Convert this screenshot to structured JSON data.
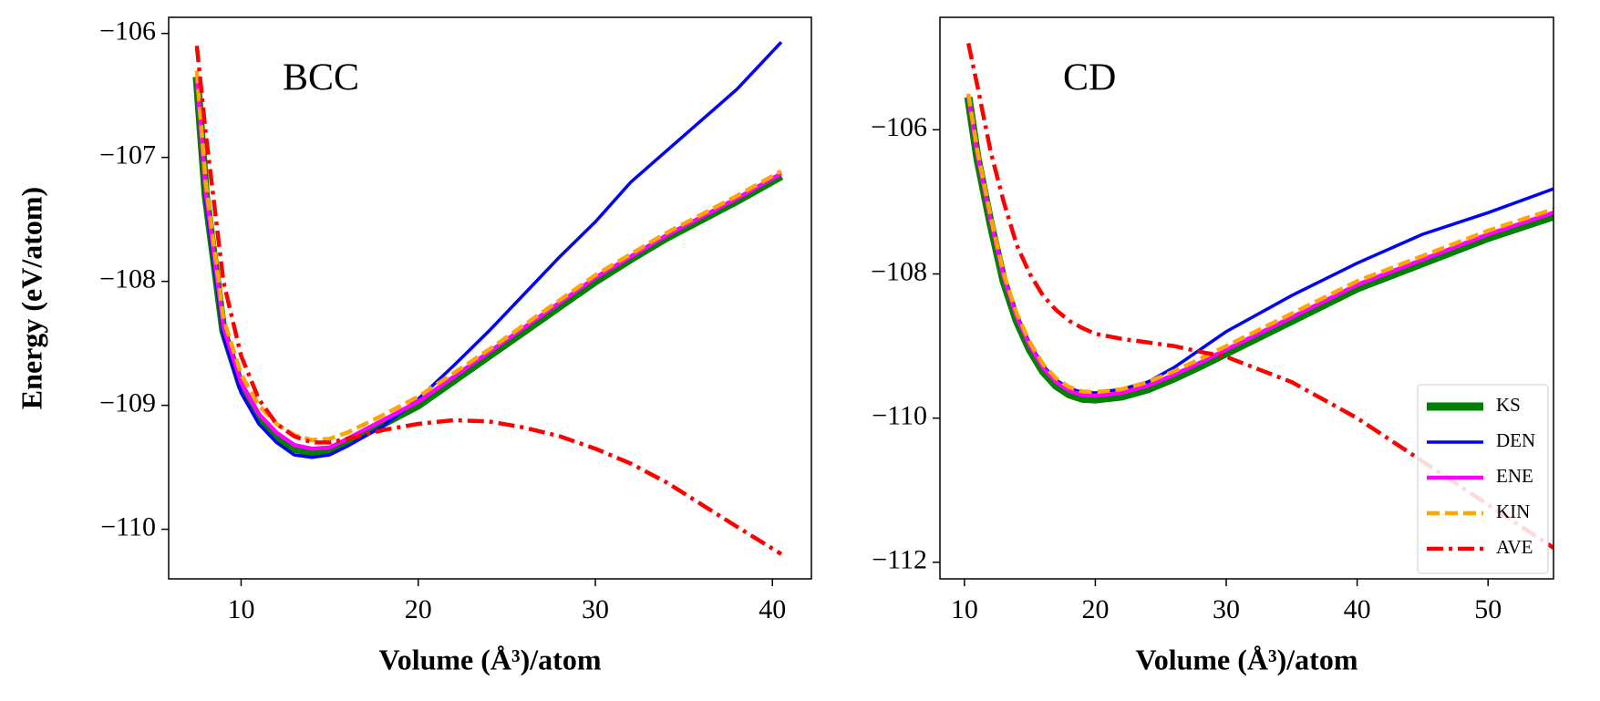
{
  "chart_data": [
    {
      "type": "line",
      "annotation": "BCC",
      "xlabel": "Volume (Å³)/atom",
      "ylabel": "Energy (eV/atom)",
      "xlim": [
        5.91,
        42.2
      ],
      "ylim": [
        -110.4,
        -105.87
      ],
      "xticks": [
        10,
        20,
        30,
        40
      ],
      "yticks": [
        {
          "value": -110,
          "label": "−110"
        },
        {
          "value": -109,
          "label": "−109"
        },
        {
          "value": -108,
          "label": "−108"
        },
        {
          "value": -107,
          "label": "−107"
        },
        {
          "value": -106,
          "label": "−106"
        }
      ],
      "x": [
        7.5,
        8,
        9,
        10,
        11,
        12,
        13,
        14,
        15,
        16,
        18,
        20,
        22,
        24,
        26,
        28,
        30,
        32,
        34,
        36,
        38,
        40.5
      ],
      "series": [
        {
          "color": "#008000",
          "linewidth": 9,
          "style": "solid",
          "values": [
            -106.35,
            -107.3,
            -108.4,
            -108.85,
            -109.1,
            -109.25,
            -109.35,
            -109.38,
            -109.37,
            -109.3,
            -109.15,
            -109.0,
            -108.8,
            -108.6,
            -108.4,
            -108.2,
            -108.0,
            -107.82,
            -107.65,
            -107.5,
            -107.35,
            -107.15
          ]
        },
        {
          "color": "#0000ff",
          "linewidth": 3.5,
          "style": "solid",
          "values": [
            -106.4,
            -107.35,
            -108.45,
            -108.9,
            -109.15,
            -109.3,
            -109.4,
            -109.42,
            -109.4,
            -109.33,
            -109.17,
            -108.95,
            -108.68,
            -108.4,
            -108.1,
            -107.8,
            -107.52,
            -107.2,
            -106.95,
            -106.7,
            -106.45,
            -106.07
          ]
        },
        {
          "color": "#ff00ff",
          "linewidth": 4.5,
          "style": "solid",
          "values": [
            -106.35,
            -107.28,
            -108.37,
            -108.82,
            -109.07,
            -109.22,
            -109.32,
            -109.35,
            -109.34,
            -109.27,
            -109.12,
            -108.97,
            -108.77,
            -108.57,
            -108.37,
            -108.17,
            -107.97,
            -107.8,
            -107.63,
            -107.48,
            -107.33,
            -107.13
          ]
        },
        {
          "color": "#ffa500",
          "linewidth": 4.5,
          "style": "dashed",
          "values": [
            -106.3,
            -107.2,
            -108.3,
            -108.75,
            -109.0,
            -109.15,
            -109.24,
            -109.28,
            -109.27,
            -109.22,
            -109.08,
            -108.93,
            -108.74,
            -108.55,
            -108.35,
            -108.15,
            -107.95,
            -107.78,
            -107.61,
            -107.46,
            -107.31,
            -107.11
          ]
        },
        {
          "color": "#ff0000",
          "linewidth": 4.5,
          "style": "dashdot",
          "values": [
            -106.1,
            -106.8,
            -108.0,
            -108.6,
            -108.95,
            -109.15,
            -109.25,
            -109.3,
            -109.3,
            -109.27,
            -109.2,
            -109.15,
            -109.12,
            -109.13,
            -109.18,
            -109.25,
            -109.35,
            -109.47,
            -109.62,
            -109.8,
            -109.98,
            -110.2
          ]
        }
      ]
    },
    {
      "type": "line",
      "annotation": "CD",
      "xlabel": "Volume (Å³)/atom",
      "legend": "lower right",
      "xlim": [
        8.13,
        55.0
      ],
      "ylim": [
        -112.23,
        -104.44
      ],
      "xticks": [
        10,
        20,
        30,
        40,
        50
      ],
      "yticks": [
        {
          "value": -112,
          "label": "−112"
        },
        {
          "value": -110,
          "label": "−110"
        },
        {
          "value": -108,
          "label": "−108"
        },
        {
          "value": -106,
          "label": "−106"
        }
      ],
      "x": [
        10.3,
        11,
        12,
        13,
        14,
        15,
        16,
        17,
        18,
        19,
        20,
        22,
        24,
        26,
        28,
        30,
        35,
        40,
        45,
        50,
        55
      ],
      "series": [
        {
          "name": "KS",
          "color": "#008000",
          "linewidth": 9,
          "style": "solid",
          "values": [
            -105.55,
            -106.4,
            -107.3,
            -108.1,
            -108.65,
            -109.05,
            -109.35,
            -109.55,
            -109.67,
            -109.73,
            -109.74,
            -109.7,
            -109.6,
            -109.45,
            -109.28,
            -109.1,
            -108.65,
            -108.2,
            -107.85,
            -107.5,
            -107.2
          ]
        },
        {
          "name": "DEN",
          "color": "#0000ff",
          "linewidth": 3.5,
          "style": "solid",
          "values": [
            -105.55,
            -106.38,
            -107.25,
            -108.02,
            -108.57,
            -108.97,
            -109.27,
            -109.47,
            -109.59,
            -109.64,
            -109.65,
            -109.6,
            -109.5,
            -109.3,
            -109.05,
            -108.8,
            -108.3,
            -107.85,
            -107.45,
            -107.15,
            -106.82
          ]
        },
        {
          "name": "ENE",
          "color": "#ff00ff",
          "linewidth": 4.5,
          "style": "solid",
          "values": [
            -105.53,
            -106.36,
            -107.25,
            -108.05,
            -108.6,
            -109.0,
            -109.3,
            -109.5,
            -109.62,
            -109.68,
            -109.69,
            -109.65,
            -109.55,
            -109.4,
            -109.23,
            -109.05,
            -108.6,
            -108.15,
            -107.8,
            -107.45,
            -107.15
          ]
        },
        {
          "name": "KIN",
          "color": "#ffa500",
          "linewidth": 4.5,
          "style": "dashed",
          "values": [
            -105.5,
            -106.3,
            -107.2,
            -108.0,
            -108.55,
            -108.95,
            -109.25,
            -109.45,
            -109.57,
            -109.63,
            -109.64,
            -109.6,
            -109.5,
            -109.35,
            -109.18,
            -109.0,
            -108.55,
            -108.1,
            -107.75,
            -107.4,
            -107.1
          ]
        },
        {
          "name": "AVE",
          "color": "#ff0000",
          "linewidth": 4.5,
          "style": "dashdot",
          "values": [
            -104.8,
            -105.4,
            -106.3,
            -107.0,
            -107.6,
            -108.0,
            -108.3,
            -108.5,
            -108.65,
            -108.75,
            -108.83,
            -108.9,
            -108.95,
            -109.0,
            -109.08,
            -109.15,
            -109.5,
            -110.0,
            -110.6,
            -111.2,
            -111.8
          ]
        }
      ]
    }
  ]
}
